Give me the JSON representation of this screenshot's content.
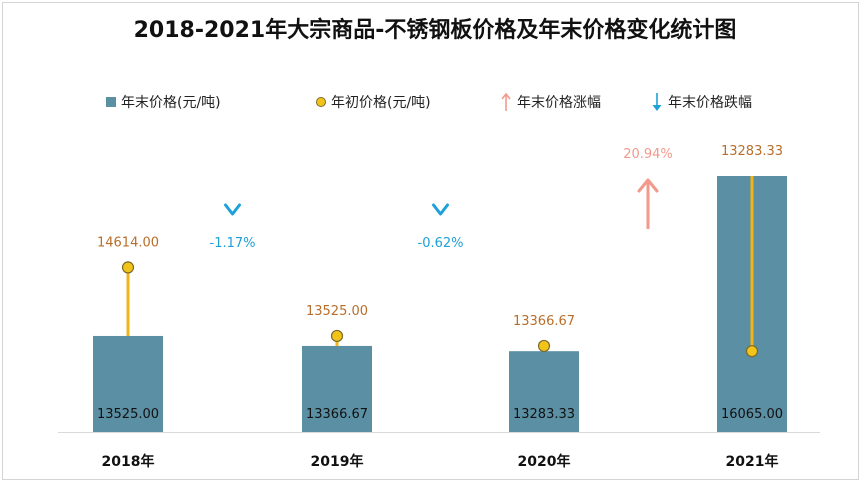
{
  "title": "2018-2021年大宗商品-不锈钢板价格及年末价格变化统计图",
  "legend": {
    "end_price": "年末价格(元/吨)",
    "start_price": "年初价格(元/吨)",
    "rise": "年末价格涨幅",
    "fall": "年末价格跌幅"
  },
  "colors": {
    "bar": "#5b8fa3",
    "dot_fill": "#f2c318",
    "dot_stroke": "#7a6a2a",
    "connector": "#f2b418",
    "start_label": "#b86e2a",
    "rise": "#f2998b",
    "fall": "#1ea0d8"
  },
  "chart_data": {
    "type": "bar",
    "categories": [
      "2018年",
      "2019年",
      "2020年",
      "2021年"
    ],
    "series": [
      {
        "name": "年末价格(元/吨)",
        "values": [
          13525.0,
          13366.67,
          13283.33,
          16065.0
        ],
        "labels": [
          "13525.00",
          "13366.67",
          "13283.33",
          "16065.00"
        ]
      },
      {
        "name": "年初价格(元/吨)",
        "values": [
          14614.0,
          13525.0,
          13366.67,
          13283.33
        ],
        "labels": [
          "14614.00",
          "13525.00",
          "13366.67",
          "13283.33"
        ]
      }
    ],
    "changes": [
      {
        "direction": "down",
        "label": "-1.17%"
      },
      {
        "direction": "down",
        "label": "-0.62%"
      },
      {
        "direction": "up",
        "label": "20.94%"
      }
    ]
  }
}
